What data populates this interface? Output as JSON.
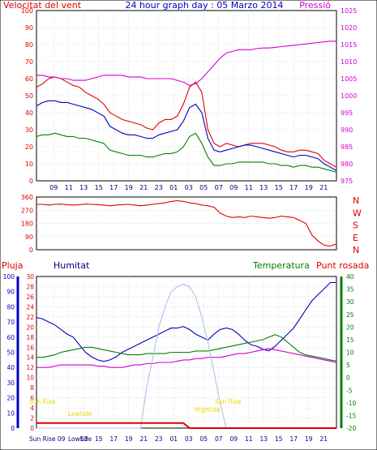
{
  "colors": {
    "red": "#e00000",
    "blue": "#0000c0",
    "green": "#008000",
    "magenta": "#d000d0",
    "navy": "#000080",
    "yellow": "#e6d800",
    "sun": "#a8c4e8",
    "grid": "#c0c0c0"
  },
  "chart_data": [
    {
      "type": "line",
      "title": "24 hour graph day : 05 Marzo 2014",
      "left_axis_title": "Velocitat del vent",
      "right_axis_title": "Pressió",
      "left_ticks": [
        "0",
        "10",
        "20",
        "30",
        "40",
        "50",
        "60",
        "70",
        "80",
        "90",
        "100"
      ],
      "right_ticks": [
        "975",
        "980",
        "985",
        "990",
        "995",
        "1000",
        "1005",
        "1010",
        "1015",
        "1020",
        "1025"
      ],
      "x_ticks": [
        "09",
        "11",
        "13",
        "15",
        "17",
        "19",
        "21",
        "23",
        "01",
        "03",
        "05",
        "07",
        "09",
        "11",
        "13",
        "15",
        "17",
        "19",
        "21",
        "23"
      ],
      "ylim_left": [
        0,
        100
      ],
      "ylim_right": [
        975,
        1025
      ],
      "grid": true,
      "series": [
        {
          "color": "red",
          "values": [
            55,
            57,
            60,
            61,
            60,
            58,
            56,
            55,
            52,
            50,
            48,
            45,
            40,
            38,
            36,
            35,
            34,
            33,
            31,
            30,
            34,
            36,
            36,
            38,
            45,
            55,
            58,
            52,
            30,
            22,
            20,
            22,
            21,
            20,
            21,
            22,
            22,
            22,
            21,
            20,
            18,
            17,
            17,
            18,
            18,
            17,
            16,
            12,
            10,
            8
          ]
        },
        {
          "color": "blue",
          "values": [
            44,
            46,
            47,
            47,
            46,
            46,
            45,
            44,
            43,
            42,
            40,
            38,
            32,
            30,
            28,
            27,
            27,
            26,
            25,
            25,
            27,
            28,
            29,
            30,
            35,
            43,
            45,
            40,
            25,
            18,
            17,
            18,
            19,
            20,
            21,
            21,
            20,
            19,
            18,
            17,
            16,
            15,
            14,
            15,
            15,
            14,
            13,
            10,
            8,
            6
          ]
        },
        {
          "color": "green",
          "values": [
            26,
            27,
            27,
            28,
            27,
            26,
            26,
            25,
            25,
            24,
            23,
            22,
            18,
            17,
            16,
            15,
            15,
            15,
            14,
            14,
            15,
            16,
            16,
            17,
            20,
            26,
            28,
            22,
            14,
            9,
            9,
            10,
            10,
            11,
            11,
            11,
            11,
            11,
            10,
            10,
            9,
            9,
            8,
            9,
            9,
            8,
            8,
            7,
            6,
            5
          ]
        },
        {
          "color": "magenta",
          "values": [
            1006,
            1006,
            1005.5,
            1005.5,
            1005,
            1005,
            1004.5,
            1004.5,
            1004.5,
            1005,
            1005.5,
            1006,
            1006,
            1006,
            1006,
            1005.5,
            1005.5,
            1005.5,
            1005,
            1005,
            1005,
            1005,
            1005,
            1004.5,
            1004,
            1003,
            1003.5,
            1005,
            1007,
            1009,
            1011,
            1012.5,
            1013,
            1013.5,
            1013.5,
            1013.5,
            1013.8,
            1014,
            1014,
            1014.2,
            1014.4,
            1014.6,
            1014.8,
            1015,
            1015.2,
            1015.4,
            1015.6,
            1015.8,
            1016,
            1016
          ]
        }
      ]
    },
    {
      "type": "line",
      "right_labels": [
        "N",
        "W",
        "S",
        "E",
        "N"
      ],
      "left_ticks": [
        "360",
        "270",
        "180",
        "90",
        "0"
      ],
      "ylim": [
        0,
        360
      ],
      "series": [
        {
          "color": "red",
          "values": [
            310,
            310,
            305,
            310,
            312,
            308,
            305,
            308,
            312,
            310,
            308,
            305,
            300,
            305,
            308,
            310,
            305,
            300,
            305,
            310,
            315,
            320,
            330,
            335,
            330,
            320,
            315,
            305,
            300,
            290,
            250,
            230,
            220,
            225,
            220,
            230,
            225,
            220,
            215,
            220,
            230,
            225,
            220,
            200,
            180,
            100,
            60,
            30,
            25,
            40
          ]
        }
      ]
    },
    {
      "type": "line",
      "left_title": "Pluja",
      "hum_title": "Humitat",
      "temp_title": "Temperatura",
      "dew_title": "Punt rosada",
      "rain_ticks": [
        "0",
        "2",
        "4",
        "6",
        "8",
        "10",
        "12",
        "14",
        "16",
        "18",
        "20",
        "22",
        "24",
        "26",
        "28",
        "30"
      ],
      "hum_ticks": [
        "0",
        "10",
        "20",
        "30",
        "40",
        "50",
        "60",
        "70",
        "80",
        "90",
        "100"
      ],
      "temp_ticks": [
        "-20",
        "-15",
        "-10",
        "-5",
        "0",
        "5",
        "10",
        "15",
        "20",
        "25",
        "30",
        "35",
        "40"
      ],
      "x_ticks": [
        "09",
        "11",
        "13",
        "15",
        "17",
        "19",
        "21",
        "23",
        "01",
        "03",
        "05",
        "07",
        "09",
        "11",
        "13",
        "15",
        "17",
        "19",
        "21",
        "23"
      ],
      "ylim_rain": [
        0,
        30
      ],
      "ylim_temp": [
        -20,
        40
      ],
      "grid": true,
      "annotations": [
        "Sun Rise",
        "Lowtide",
        "Hightide",
        "Sun Rise"
      ],
      "bottom_labels": [
        "Sun Rise 09",
        "Lowtide"
      ],
      "series": [
        {
          "color": "blue",
          "values": [
            73,
            72,
            70,
            68,
            65,
            62,
            60,
            55,
            50,
            47,
            45,
            44,
            45,
            47,
            50,
            52,
            54,
            56,
            58,
            60,
            62,
            64,
            66,
            66,
            67,
            65,
            62,
            60,
            58,
            62,
            65,
            66,
            65,
            62,
            58,
            55,
            54,
            52,
            51,
            54,
            58,
            62,
            66,
            72,
            78,
            84,
            88,
            92,
            96,
            96
          ]
        },
        {
          "color": "green",
          "values": [
            8,
            8,
            8.5,
            9,
            10,
            10.5,
            11,
            11.5,
            12,
            12,
            11.5,
            11,
            10.5,
            10,
            9.5,
            9,
            9,
            9,
            9.5,
            9.5,
            9.5,
            9.5,
            10,
            10,
            10,
            10,
            10.5,
            10.5,
            10.5,
            11,
            11.5,
            12,
            12.5,
            13,
            13.5,
            14,
            14.5,
            15,
            16,
            17,
            16,
            14,
            12,
            10,
            9,
            8.5,
            8,
            7.5,
            7,
            6.5
          ]
        },
        {
          "color": "magenta",
          "values": [
            4,
            4,
            4,
            4.5,
            5,
            5,
            5,
            5,
            5,
            5,
            4.5,
            4.5,
            4,
            4,
            4,
            4.5,
            5,
            5,
            5.5,
            5.5,
            6,
            6,
            6,
            6.5,
            7,
            7,
            7.5,
            7.5,
            8,
            8,
            8,
            8.5,
            9,
            9.5,
            9.5,
            10,
            10.5,
            11,
            11.5,
            11,
            10.5,
            10,
            9.5,
            9,
            8.5,
            8,
            7.5,
            7,
            6.5,
            6
          ]
        },
        {
          "color": "sun",
          "values": [
            0,
            0,
            0,
            0,
            0,
            0,
            0,
            0,
            0,
            0,
            0,
            0,
            0,
            0,
            0,
            0,
            0,
            0,
            8,
            14,
            20,
            24,
            27,
            28,
            28.5,
            28,
            26,
            22,
            17,
            11,
            5,
            0,
            0,
            0,
            0,
            0,
            0,
            0,
            0,
            0,
            0,
            0,
            0,
            0,
            0,
            0,
            0,
            0,
            0,
            0
          ]
        },
        {
          "color": "red",
          "values": [
            1,
            1,
            1,
            1,
            1,
            1,
            1,
            1,
            1,
            1,
            1,
            1,
            1,
            1,
            1,
            1,
            1,
            1,
            1,
            1,
            1,
            1,
            1,
            1,
            1,
            0,
            0,
            0,
            0,
            0,
            0,
            0,
            0,
            0,
            0,
            0,
            0,
            0,
            0,
            0,
            0,
            0,
            0,
            0,
            0,
            0,
            0,
            0,
            0,
            0
          ]
        }
      ]
    }
  ]
}
